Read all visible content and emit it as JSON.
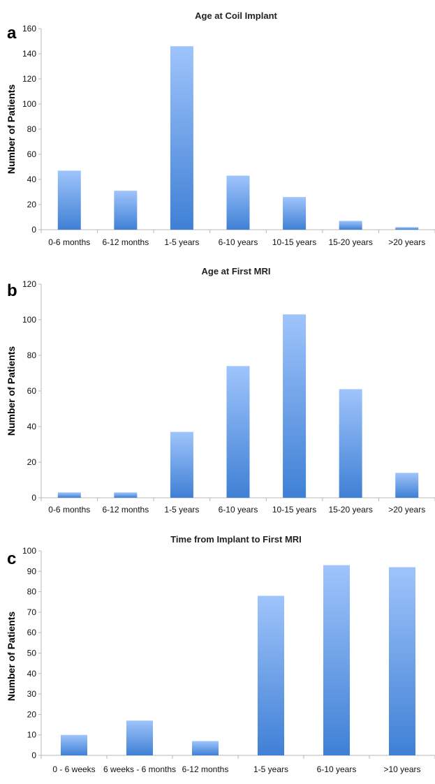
{
  "figure": {
    "colors": {
      "bar_top": "#9fc4fb",
      "bar_bottom": "#3f80d5",
      "axis": "#b9b9b9"
    }
  },
  "chart_data": [
    {
      "type": "bar",
      "panel_label": "a",
      "title": "Age at Coil Implant",
      "ylabel": "Number of Patients",
      "xlabel": "",
      "ylim": [
        0,
        160
      ],
      "yticks": [
        0,
        20,
        40,
        60,
        80,
        100,
        120,
        140,
        160
      ],
      "categories": [
        "0-6 months",
        "6-12 months",
        "1-5 years",
        "6-10 years",
        "10-15 years",
        "15-20 years",
        ">20 years"
      ],
      "values": [
        47,
        31,
        146,
        43,
        26,
        7,
        2
      ]
    },
    {
      "type": "bar",
      "panel_label": "b",
      "title": "Age at First MRI",
      "ylabel": "Number of Patients",
      "xlabel": "",
      "ylim": [
        0,
        120
      ],
      "yticks": [
        0,
        20,
        40,
        60,
        80,
        100,
        120
      ],
      "categories": [
        "0-6 months",
        "6-12 months",
        "1-5 years",
        "6-10 years",
        "10-15 years",
        "15-20 years",
        ">20 years"
      ],
      "values": [
        3,
        3,
        37,
        74,
        103,
        61,
        14
      ]
    },
    {
      "type": "bar",
      "panel_label": "c",
      "title": "Time from Implant to First MRI",
      "ylabel": "Number of Patients",
      "xlabel": "",
      "ylim": [
        0,
        100
      ],
      "yticks": [
        0,
        10,
        20,
        30,
        40,
        50,
        60,
        70,
        80,
        90,
        100
      ],
      "categories": [
        "0 - 6 weeks",
        "6 weeks - 6 months",
        "6-12 months",
        "1-5 years",
        "6-10 years",
        ">10 years"
      ],
      "values": [
        10,
        17,
        7,
        78,
        93,
        92
      ]
    }
  ]
}
